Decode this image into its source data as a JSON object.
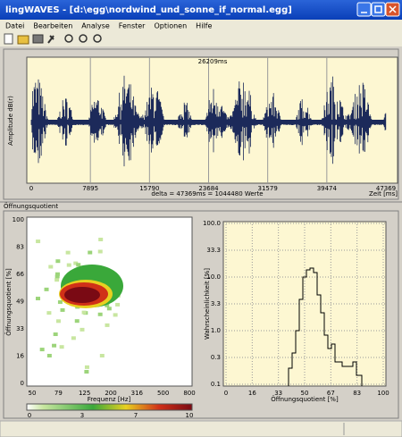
{
  "window": {
    "title": "lingWAVES - [d:\\egg\\nordwind_und_sonne_if_normal.egg]"
  },
  "menu": [
    "Datei",
    "Bearbeiten",
    "Analyse",
    "Fenster",
    "Optionen",
    "Hilfe"
  ],
  "waveform": {
    "marker": "26209ms",
    "y_label": "Amplitude dB(r)",
    "x_ticks": [
      "0",
      "7895",
      "15790",
      "23684",
      "31579",
      "39474",
      "47369"
    ],
    "x_label": "Zeit [ms]",
    "info": "delta = 47369ms = 1044480 Werte"
  },
  "section_label": "Öffnungsquotient",
  "heatmap": {
    "y_label": "Öffnungsquotient [%]",
    "y_ticks": [
      "100",
      "83",
      "66",
      "49",
      "33",
      "16",
      "0"
    ],
    "x_ticks": [
      "50",
      "79",
      "125",
      "200",
      "316",
      "500",
      "800"
    ],
    "x_label": "Frequenz [Hz]",
    "colorbar_ticks": [
      "0",
      "3",
      "7",
      "10"
    ]
  },
  "histogram": {
    "y_label": "Wahrscheinlichkeit [%]",
    "y_ticks": [
      "100.0",
      "33.3",
      "10.0",
      "3.3",
      "1.0",
      "0.3",
      "0.1"
    ],
    "x_ticks": [
      "0",
      "16",
      "33",
      "50",
      "67",
      "83",
      "100"
    ],
    "x_label": "Öffnungsquotient [%]"
  }
}
